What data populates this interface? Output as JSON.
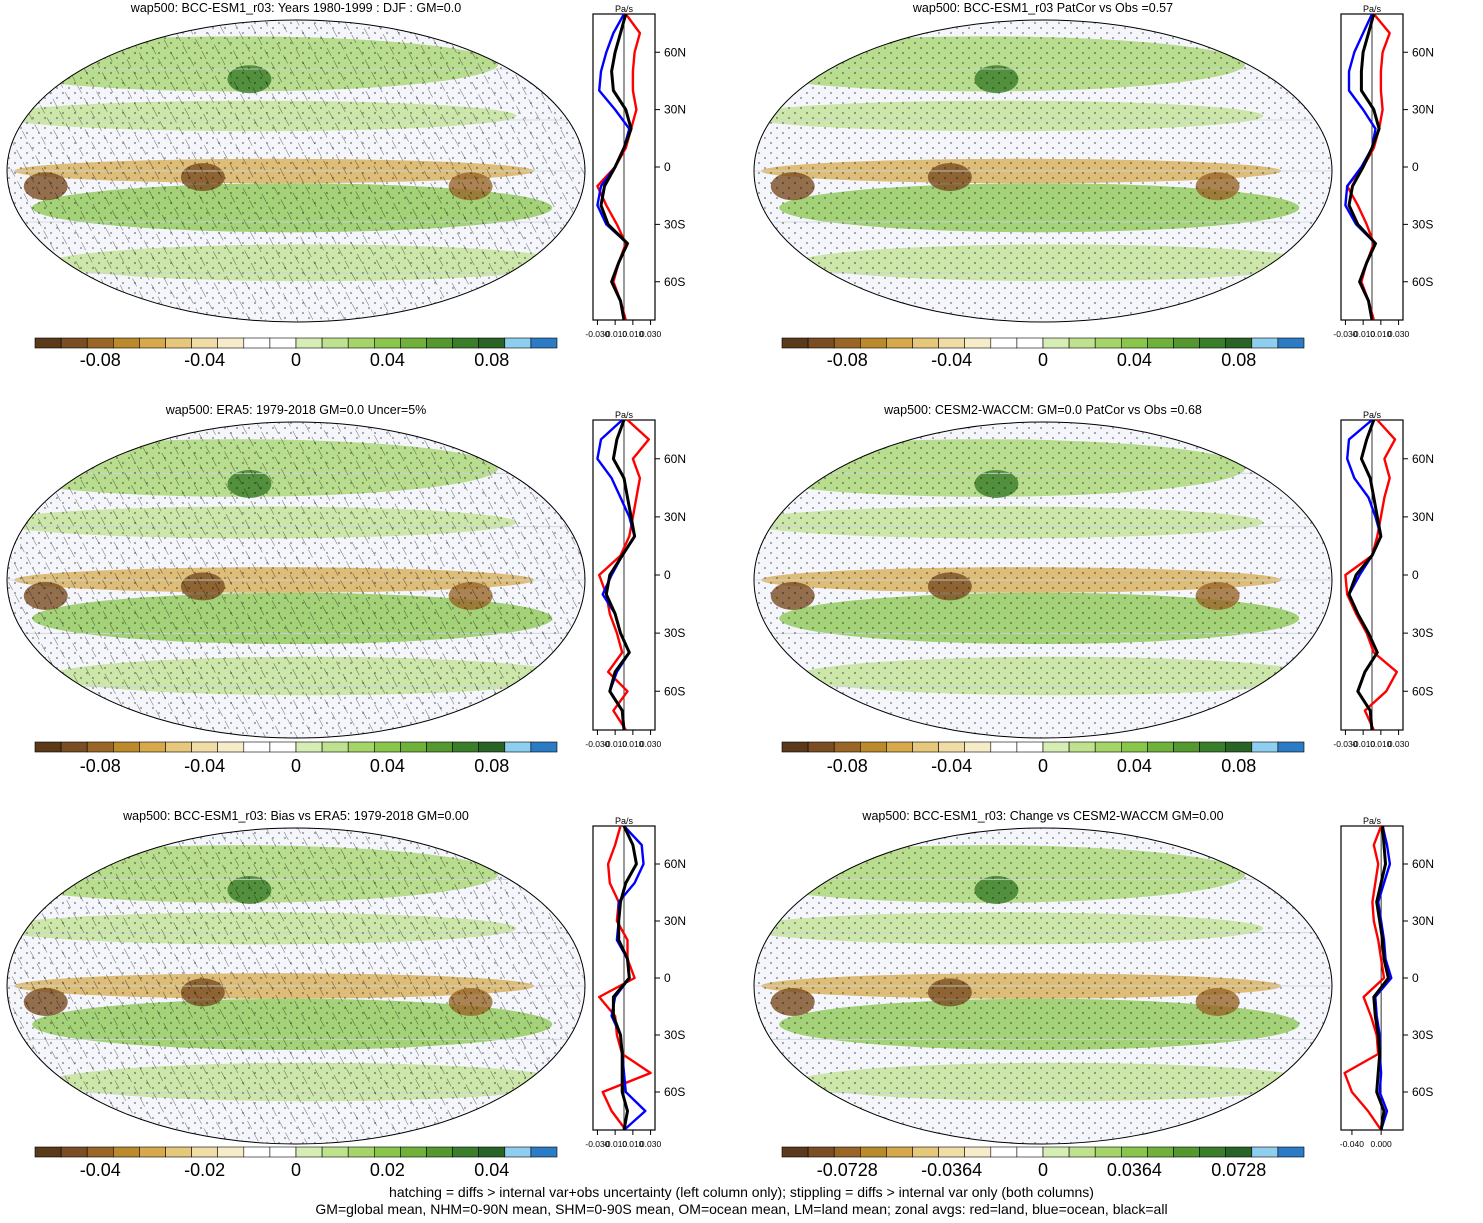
{
  "footer": {
    "line1": "hatching = diffs > internal var+obs uncertainty (left column only); stippling = diffs > internal var only (both columns)",
    "line2": "GM=global mean, NHM=0-90N mean, SHM=0-90S mean, OM=ocean mean, LM=land mean; zonal avgs: red=land, blue=ocean, black=all"
  },
  "colors": {
    "land": "#ff0000",
    "ocean": "#0000ff",
    "all": "#000000",
    "colorbar": [
      "#5a3a1a",
      "#7a4e22",
      "#9a6628",
      "#bb8a2c",
      "#d6a94c",
      "#e6c77c",
      "#f0dca6",
      "#f6ecc9",
      "#ffffff",
      "#ffffff",
      "#d6edb5",
      "#bfe28e",
      "#a5d46a",
      "#8ac54c",
      "#6fb13b",
      "#54982f",
      "#3a7d2a",
      "#2a6326",
      "#8ecff0",
      "#2b7cc4"
    ]
  },
  "chart_data": [
    {
      "type": "heatmap",
      "title": "wap500: BCC-ESM1_r03: Years 1980-1999 : DJF : GM=0.0",
      "colorbar_ticks": [
        "-0.08",
        "-0.04",
        "0",
        "0.04",
        "0.08"
      ],
      "hatched": true,
      "zonal": {
        "units": "Pa/s",
        "lat_ticks": [
          "60N",
          "30N",
          "0",
          "30S",
          "60S"
        ],
        "x_ticks": [
          "-0.030",
          "-0.010",
          "0.010",
          "0.030"
        ],
        "xlim": [
          -0.035,
          0.035
        ],
        "lat": [
          80,
          70,
          60,
          50,
          40,
          30,
          20,
          10,
          0,
          -10,
          -20,
          -30,
          -40,
          -50,
          -60,
          -70,
          -80
        ],
        "land": [
          0.002,
          0.018,
          0.012,
          0.01,
          0.01,
          0.014,
          0.008,
          0.002,
          -0.01,
          -0.03,
          -0.02,
          -0.008,
          0.002,
          -0.006,
          -0.012,
          -0.004,
          0.002
        ],
        "ocean": [
          0.0,
          -0.012,
          -0.02,
          -0.026,
          -0.028,
          -0.01,
          0.006,
          0.0,
          -0.01,
          -0.026,
          -0.03,
          -0.02,
          0.004,
          -0.006,
          -0.014,
          -0.004,
          0.0
        ],
        "all": [
          0.002,
          -0.004,
          -0.01,
          -0.014,
          -0.012,
          0.002,
          0.008,
          0.0,
          -0.01,
          -0.022,
          -0.026,
          -0.018,
          0.004,
          -0.006,
          -0.014,
          -0.004,
          0.0
        ]
      }
    },
    {
      "type": "heatmap",
      "title": "wap500: BCC-ESM1_r03 PatCor vs Obs =0.57",
      "colorbar_ticks": [
        "-0.08",
        "-0.04",
        "0",
        "0.04",
        "0.08"
      ],
      "hatched": false,
      "zonal": {
        "units": "Pa/s",
        "lat_ticks": [
          "60N",
          "30N",
          "0",
          "30S",
          "60S"
        ],
        "x_ticks": [
          "-0.030",
          "-0.010",
          "0.010",
          "0.030"
        ],
        "xlim": [
          -0.035,
          0.035
        ],
        "lat": [
          80,
          70,
          60,
          50,
          40,
          30,
          20,
          10,
          0,
          -10,
          -20,
          -30,
          -40,
          -50,
          -60,
          -70,
          -80
        ],
        "land": [
          0.002,
          0.02,
          0.012,
          0.01,
          0.01,
          0.012,
          0.008,
          0.002,
          -0.01,
          -0.028,
          -0.016,
          -0.006,
          0.002,
          -0.006,
          -0.012,
          -0.004,
          0.002
        ],
        "ocean": [
          0.0,
          -0.01,
          -0.02,
          -0.026,
          -0.026,
          -0.01,
          0.004,
          0.0,
          -0.012,
          -0.028,
          -0.03,
          -0.018,
          0.004,
          -0.006,
          -0.014,
          -0.004,
          0.0
        ],
        "all": [
          0.002,
          -0.004,
          -0.01,
          -0.012,
          -0.012,
          0.002,
          0.008,
          0.0,
          -0.01,
          -0.022,
          -0.026,
          -0.016,
          0.004,
          -0.006,
          -0.014,
          -0.004,
          0.0
        ]
      }
    },
    {
      "type": "heatmap",
      "title": "wap500: ERA5: 1979-2018 GM=0.0 Uncer=5%",
      "colorbar_ticks": [
        "-0.08",
        "-0.04",
        "0",
        "0.04",
        "0.08"
      ],
      "hatched": true,
      "zonal": {
        "units": "Pa/s",
        "lat_ticks": [
          "60N",
          "30N",
          "0",
          "30S",
          "60S"
        ],
        "x_ticks": [
          "-0.030",
          "-0.010",
          "0.010",
          "0.030"
        ],
        "xlim": [
          -0.035,
          0.035
        ],
        "lat": [
          80,
          70,
          60,
          50,
          40,
          30,
          20,
          10,
          0,
          -10,
          -20,
          -30,
          -40,
          -50,
          -60,
          -70,
          -80
        ],
        "land": [
          0.004,
          0.028,
          0.01,
          0.018,
          0.014,
          0.01,
          0.006,
          -0.004,
          -0.028,
          -0.02,
          -0.016,
          -0.008,
          -0.002,
          -0.018,
          0.004,
          -0.012,
          0.002
        ],
        "ocean": [
          -0.002,
          -0.026,
          -0.03,
          -0.014,
          -0.004,
          0.006,
          0.012,
          -0.002,
          -0.014,
          -0.024,
          -0.01,
          -0.004,
          0.006,
          -0.008,
          -0.016,
          -0.002,
          0.0
        ],
        "all": [
          0.0,
          -0.008,
          -0.012,
          0.0,
          0.004,
          0.008,
          0.012,
          -0.002,
          -0.016,
          -0.02,
          -0.01,
          -0.004,
          0.006,
          -0.01,
          -0.016,
          -0.002,
          0.0
        ]
      }
    },
    {
      "type": "heatmap",
      "title": "wap500: CESM2-WACCM: GM=0.0 PatCor vs Obs =0.68",
      "colorbar_ticks": [
        "-0.08",
        "-0.04",
        "0",
        "0.04",
        "0.08"
      ],
      "hatched": false,
      "zonal": {
        "units": "Pa/s",
        "lat_ticks": [
          "60N",
          "30N",
          "0",
          "30S",
          "60S"
        ],
        "x_ticks": [
          "-0.030",
          "-0.010",
          "0.010",
          "0.030"
        ],
        "xlim": [
          -0.035,
          0.035
        ],
        "lat": [
          80,
          70,
          60,
          50,
          40,
          30,
          20,
          10,
          0,
          -10,
          -20,
          -30,
          -40,
          -50,
          -60,
          -70,
          -80
        ],
        "land": [
          0.006,
          0.026,
          0.014,
          0.02,
          0.014,
          0.01,
          0.006,
          0.0,
          -0.03,
          -0.028,
          -0.018,
          -0.006,
          0.002,
          0.028,
          0.016,
          -0.008,
          0.002
        ],
        "ocean": [
          0.0,
          -0.026,
          -0.028,
          -0.02,
          -0.004,
          0.004,
          0.01,
          0.0,
          -0.014,
          -0.026,
          -0.016,
          -0.004,
          0.006,
          -0.008,
          -0.016,
          -0.002,
          0.0
        ],
        "all": [
          0.002,
          -0.006,
          -0.012,
          -0.002,
          0.002,
          0.006,
          0.01,
          0.0,
          -0.018,
          -0.026,
          -0.016,
          -0.004,
          0.006,
          -0.008,
          -0.016,
          -0.002,
          0.0
        ]
      }
    },
    {
      "type": "heatmap",
      "title": "wap500: BCC-ESM1_r03: Bias vs ERA5: 1979-2018 GM=0.00",
      "colorbar_ticks": [
        "-0.04",
        "-0.02",
        "0",
        "0.02",
        "0.04"
      ],
      "hatched": true,
      "zonal": {
        "units": "Pa/s",
        "lat_ticks": [
          "60N",
          "30N",
          "0",
          "30S",
          "60S"
        ],
        "x_ticks": [
          "-0.030",
          "-0.010",
          "0.010",
          "0.030"
        ],
        "xlim": [
          -0.035,
          0.035
        ],
        "lat": [
          80,
          70,
          60,
          50,
          40,
          30,
          20,
          10,
          0,
          -10,
          -20,
          -30,
          -40,
          -50,
          -60,
          -70,
          -80
        ],
        "land": [
          -0.004,
          -0.01,
          -0.018,
          -0.016,
          -0.006,
          -0.008,
          0.004,
          0.004,
          0.012,
          -0.028,
          -0.01,
          -0.008,
          -0.002,
          0.03,
          -0.024,
          -0.014,
          0.002
        ],
        "ocean": [
          0.0,
          0.02,
          0.022,
          0.012,
          -0.006,
          -0.006,
          -0.008,
          0.004,
          0.006,
          -0.01,
          -0.014,
          -0.004,
          -0.002,
          0.0,
          0.002,
          0.024,
          0.0
        ],
        "all": [
          0.0,
          0.01,
          0.014,
          0.002,
          -0.004,
          -0.006,
          -0.006,
          0.004,
          0.006,
          -0.012,
          -0.012,
          -0.004,
          -0.002,
          -0.002,
          -0.002,
          0.004,
          0.0
        ]
      }
    },
    {
      "type": "heatmap",
      "title": "wap500: BCC-ESM1_r03: Change vs CESM2-WACCM GM=0.00",
      "colorbar_ticks": [
        "-0.0728",
        "-0.0364",
        "0",
        "0.0364",
        "0.0728"
      ],
      "hatched": false,
      "zonal": {
        "units": "Pa/s",
        "lat_ticks": [
          "60N",
          "30N",
          "0",
          "30S",
          "60S"
        ],
        "x_ticks": [
          "-0.040",
          "0.000"
        ],
        "xlim": [
          -0.055,
          0.03
        ],
        "lat": [
          80,
          70,
          60,
          50,
          40,
          30,
          20,
          10,
          0,
          -10,
          -20,
          -30,
          -40,
          -50,
          -60,
          -70,
          -80
        ],
        "land": [
          0.0,
          -0.01,
          -0.004,
          -0.008,
          -0.012,
          -0.01,
          -0.004,
          0.0,
          0.004,
          -0.024,
          -0.014,
          -0.006,
          -0.004,
          -0.05,
          -0.04,
          -0.018,
          0.0
        ],
        "ocean": [
          0.002,
          0.008,
          0.012,
          0.004,
          -0.004,
          0.0,
          0.004,
          0.006,
          0.014,
          -0.008,
          -0.006,
          -0.002,
          -0.002,
          0.0,
          -0.002,
          0.008,
          0.0
        ],
        "all": [
          0.002,
          0.004,
          0.006,
          0.0,
          -0.006,
          -0.002,
          0.002,
          0.004,
          0.01,
          -0.01,
          -0.008,
          -0.004,
          -0.002,
          -0.004,
          -0.006,
          0.004,
          0.0
        ]
      }
    }
  ]
}
